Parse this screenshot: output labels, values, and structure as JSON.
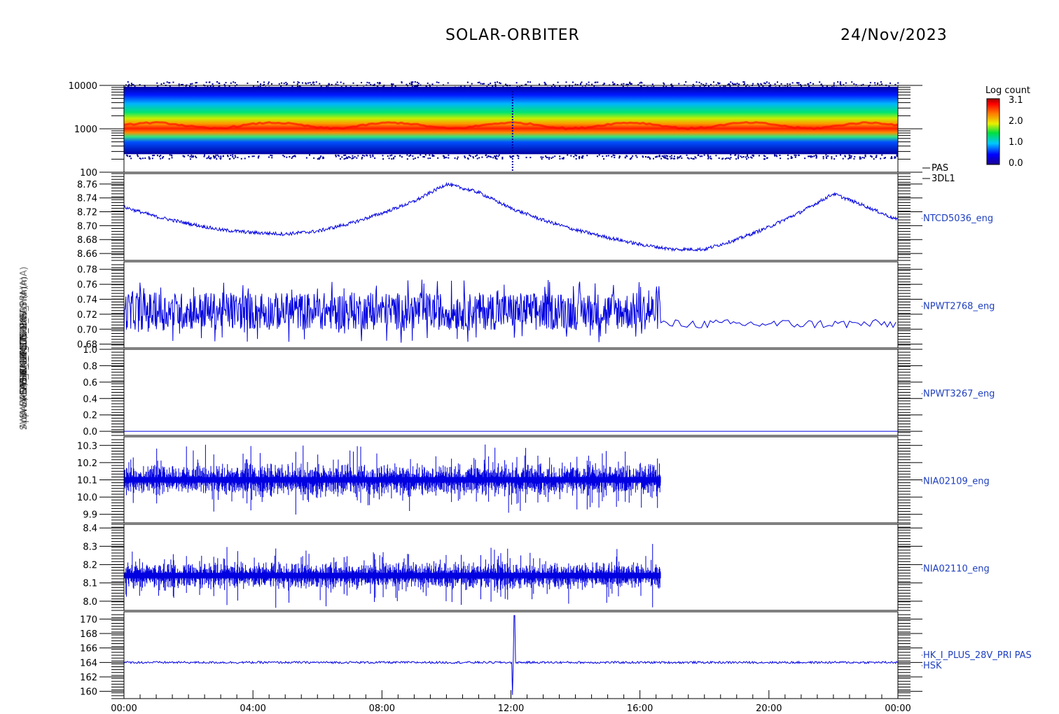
{
  "header": {
    "mission": "SOLAR-ORBITER",
    "date": "24/Nov/2023"
  },
  "colorbar": {
    "title": "Log count",
    "ticks": [
      "3.1",
      "2.0",
      "1.0",
      "0.0"
    ]
  },
  "y_axis_stacked_labels": [
    "(eV)",
    "Approx Temp (DegC)",
    "SWA-EAS FSW NTCD5036",
    "SWA-EAS Chan1 ThermB",
    "SWA-PAS I Pri",
    "PDM_HK_IMON_PAS (mA)",
    "PDM_HK_IMON_PAS (mA)",
    "HK_I_PLUS_28V_PRI (mA)"
  ],
  "x_axis": {
    "ticks": [
      "00:00",
      "04:00",
      "08:00",
      "12:00",
      "16:00",
      "20:00",
      "00:00"
    ]
  },
  "chart_data": [
    {
      "type": "heatmap",
      "name": "PAS 3DL1",
      "label_lines": [
        "PAS",
        "3DL1"
      ],
      "ylabel": "(eV)",
      "y_scale": "log",
      "ylim": [
        100,
        10000
      ],
      "y_ticks": [
        "10000",
        "1000",
        "100"
      ],
      "color_range": [
        0.0,
        3.1
      ],
      "peak_energy_eV": 1200,
      "description_band": "counts between ~250 and ~10000 eV, peak near 1200 eV"
    },
    {
      "type": "line",
      "name": "NTCD5036_eng",
      "ylim": [
        8.65,
        8.775
      ],
      "y_ticks": [
        "8.76",
        "8.74",
        "8.72",
        "8.70",
        "8.68",
        "8.66"
      ],
      "x_hours": [
        0,
        1,
        2,
        3,
        4,
        5,
        6,
        7,
        8,
        9,
        10,
        11,
        12,
        13,
        14,
        15,
        16,
        17,
        18,
        19,
        20,
        21,
        22,
        23,
        24
      ],
      "values": [
        8.727,
        8.713,
        8.703,
        8.694,
        8.69,
        8.688,
        8.692,
        8.703,
        8.718,
        8.735,
        8.76,
        8.748,
        8.725,
        8.708,
        8.694,
        8.683,
        8.673,
        8.666,
        8.666,
        8.68,
        8.698,
        8.72,
        8.746,
        8.728,
        8.708
      ]
    },
    {
      "type": "line",
      "name": "NPWT2768_eng",
      "ylim": [
        0.675,
        0.79
      ],
      "y_ticks": [
        "0.78",
        "0.76",
        "0.74",
        "0.72",
        "0.70",
        "0.68"
      ],
      "mean_noisy": 0.724,
      "noise_amplitude": 0.025,
      "noisy_until_hour": 16.65,
      "mean_after": 0.707,
      "amplitude_after": 0.006
    },
    {
      "type": "line",
      "name": "NPWT3267_eng",
      "ylim": [
        -0.05,
        1.0
      ],
      "y_ticks": [
        "1.0",
        "0.8",
        "0.6",
        "0.4",
        "0.2",
        "0.0"
      ],
      "constant_value": 0.0
    },
    {
      "type": "line",
      "name": "NIA02109_eng",
      "ylim": [
        9.85,
        10.35
      ],
      "y_ticks": [
        "10.3",
        "10.2",
        "10.1",
        "10.0",
        "9.9"
      ],
      "base_value": 10.1,
      "noise_amplitude": 0.15,
      "data_until_hour": 16.65
    },
    {
      "type": "line",
      "name": "NIA02110_eng",
      "ylim": [
        7.95,
        8.42
      ],
      "y_ticks": [
        "8.4",
        "8.3",
        "8.2",
        "8.1",
        "8.0"
      ],
      "base_value": 8.14,
      "noise_amplitude": 0.12,
      "data_until_hour": 16.65
    },
    {
      "type": "line",
      "name": "HK_I_PLUS_28V_PRI PAS",
      "label_lines": [
        "HK_I_PLUS_28V_PRI PAS",
        "HSK"
      ],
      "ylim": [
        159,
        171
      ],
      "y_ticks": [
        "170",
        "168",
        "166",
        "164",
        "162",
        "160"
      ],
      "base_value": 164.0,
      "spike_hour": 12.1,
      "spike_max": 170.5,
      "spike_min": 159.5
    }
  ],
  "colors": {
    "trace": "#0000e0",
    "label": "#1f3fbf"
  }
}
